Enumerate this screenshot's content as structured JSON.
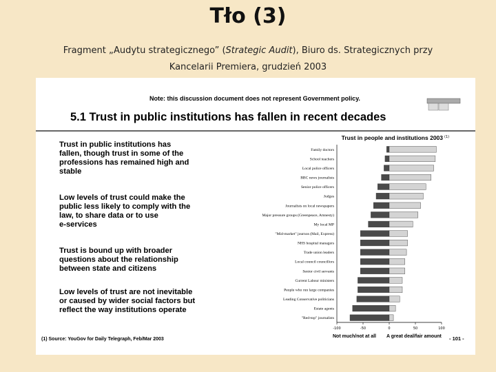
{
  "header": {
    "title": "Tło (3)",
    "subtitle_parts": [
      "Fragment „Audytu strategicznego” (",
      "Strategic Audit",
      "), Biuro ds. Strategicznych przy"
    ],
    "subtitle_line2": "Kancelarii Premiera, grudzień 2003"
  },
  "slide": {
    "note": "Note: this discussion document does not represent Government policy.",
    "heading": "5.1 Trust in public institutions has fallen in recent decades",
    "bullets": [
      "Trust in public institutions has fallen, though trust in some of the professions has remained high and stable",
      "Low levels of trust could make the public less likely to comply with the law, to share data or to use e-services",
      "Trust is bound up with broader questions about the relationship between state and citizens",
      "Low levels of trust are not inevitable or caused by wider social factors but reflect the way institutions operate"
    ],
    "source": "(1) Source: YouGov for Daily Telegraph, Feb/Mar 2003",
    "page": "- 101 -"
  },
  "chart_data": {
    "type": "diverging-bar",
    "title": "Trust in people and institutions 2003",
    "title_note": "(1)",
    "categories": [
      "Family doctors",
      "School teachers",
      "Local police officers",
      "BBC news journalists",
      "Senior police officers",
      "Judges",
      "Journalists on local newspapers",
      "Major pressure groups (Greenpeace, Amnesty)",
      "My local MP",
      "\"Mid-market\" journos (Mail, Express)",
      "NHS hospital managers",
      "Trade union leaders",
      "Local council councillors",
      "Senior civil servants",
      "Current Labour ministers",
      "People who run large companies",
      "Leading Conservative politicians",
      "Estate agents",
      "\"Red-top\" journalists"
    ],
    "series": [
      {
        "name": "Not much/not at all",
        "color": "#4a4a4a",
        "values": [
          -5,
          -8,
          -10,
          -15,
          -22,
          -25,
          -30,
          -35,
          -40,
          -55,
          -55,
          -55,
          -55,
          -55,
          -60,
          -60,
          -62,
          -70,
          -75
        ]
      },
      {
        "name": "A great deal/fair amount",
        "color": "#d4d4d4",
        "values": [
          90,
          88,
          85,
          80,
          70,
          65,
          60,
          55,
          45,
          35,
          35,
          33,
          30,
          30,
          25,
          25,
          20,
          12,
          8
        ]
      }
    ],
    "xlim": [
      -100,
      100
    ],
    "xticks": [
      -100,
      -50,
      0,
      50,
      100
    ]
  }
}
